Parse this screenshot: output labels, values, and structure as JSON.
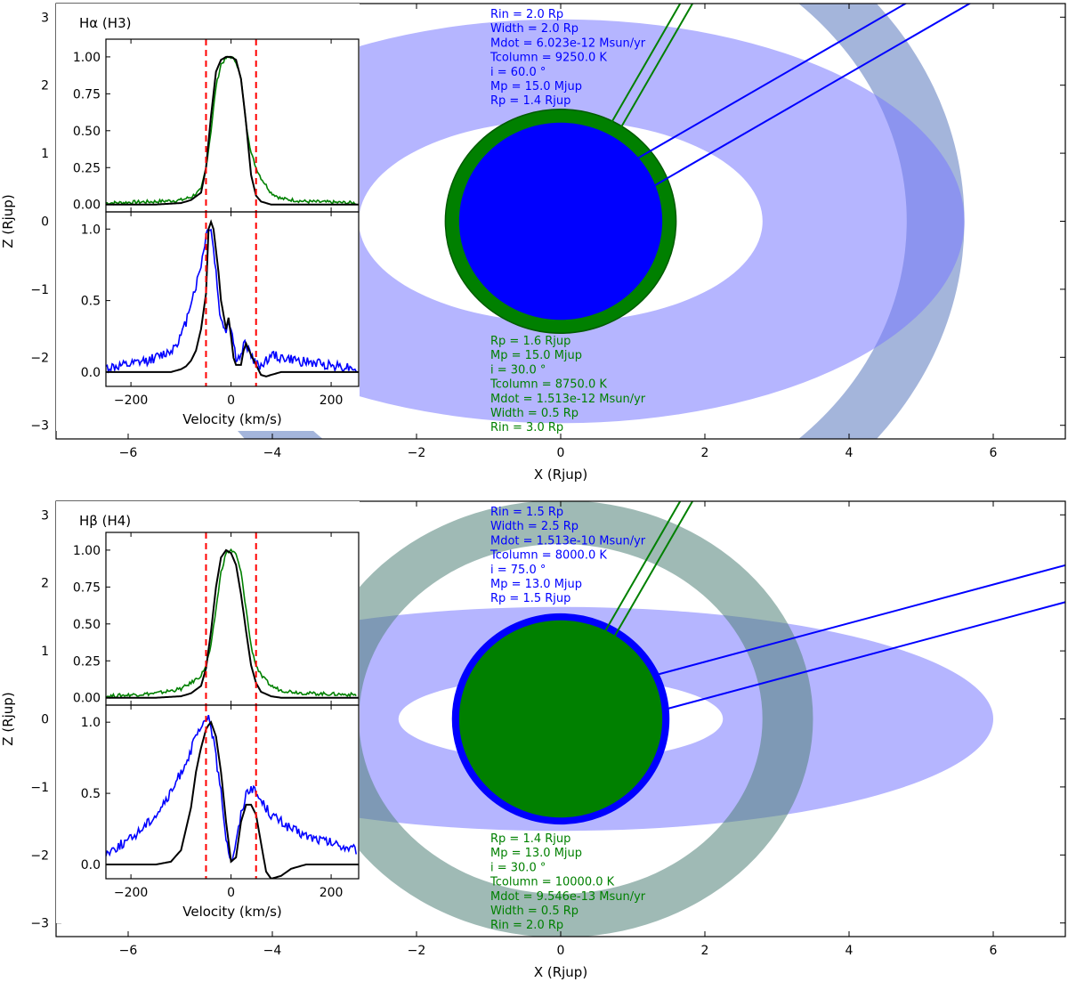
{
  "chart_data": [
    {
      "type": "scatter",
      "panel": "top",
      "line_label": "Hα (H3)",
      "xlabel": "X (Rjup)",
      "ylabel": "Z (Rjup)",
      "xlim": [
        -7,
        7
      ],
      "ylim": [
        -3.2,
        3.2
      ],
      "xticks": [
        -6,
        -4,
        -2,
        0,
        2,
        4,
        6
      ],
      "yticks": [
        -3,
        -2,
        -1,
        0,
        1,
        2,
        3
      ],
      "model_blue": {
        "color": "#0000ff",
        "Rp": 1.4,
        "Rin": 2.0,
        "Width": 2.0,
        "incl": 60.0,
        "params": [
          "Rin = 2.0 Rp",
          "Width = 2.0 Rp",
          "Mdot = 6.023e-12 Msun/yr",
          "Tcolumn = 9250.0 K",
          "i = 60.0 °",
          "Mp = 15.0 Mjup",
          "Rp = 1.4 Rjup"
        ]
      },
      "model_green": {
        "color": "#008000",
        "Rp": 1.6,
        "Rin": 3.0,
        "Width": 0.5,
        "incl": 30.0,
        "params": [
          "Rp = 1.6 Rjup",
          "Mp = 15.0 Mjup",
          "i = 30.0 °",
          "Tcolumn = 8750.0 K",
          "Mdot = 1.513e-12 Msun/yr",
          "Width = 0.5 Rp",
          "Rin = 3.0 Rp"
        ]
      },
      "inset": {
        "xlabel": "Velocity (km/s)",
        "xlim": [
          -250,
          255
        ],
        "xticks": [
          -200,
          0,
          200
        ],
        "vlines": [
          -50,
          50
        ],
        "upper": {
          "ylim": [
            -0.05,
            1.12
          ],
          "yticks": [
            0.0,
            0.25,
            0.5,
            0.75,
            1.0
          ],
          "yticklabels": [
            "0.00",
            "0.25",
            "0.50",
            "0.75",
            "1.00"
          ],
          "x": [
            -250,
            -150,
            -100,
            -80,
            -60,
            -50,
            -40,
            -30,
            -20,
            -10,
            0,
            10,
            20,
            30,
            40,
            50,
            60,
            80,
            100,
            150,
            250
          ],
          "observed": [
            0.01,
            0.02,
            0.03,
            0.05,
            0.1,
            0.25,
            0.5,
            0.8,
            0.95,
            0.99,
            1.0,
            0.97,
            0.85,
            0.55,
            0.35,
            0.25,
            0.18,
            0.08,
            0.04,
            0.02,
            0.01
          ],
          "model": [
            0.0,
            0.0,
            0.01,
            0.03,
            0.08,
            0.25,
            0.6,
            0.9,
            0.98,
            1.0,
            1.0,
            0.98,
            0.85,
            0.55,
            0.2,
            0.06,
            0.02,
            0.0,
            0.0,
            0.0,
            0.0
          ]
        },
        "lower": {
          "ylim": [
            -0.1,
            1.12
          ],
          "yticks": [
            0.0,
            0.5,
            1.0
          ],
          "yticklabels": [
            "0.0",
            "0.5",
            "1.0"
          ],
          "x": [
            -250,
            -200,
            -150,
            -120,
            -100,
            -90,
            -80,
            -70,
            -60,
            -50,
            -45,
            -40,
            -35,
            -30,
            -25,
            -20,
            -10,
            -5,
            0,
            5,
            10,
            20,
            25,
            30,
            40,
            50,
            60,
            70,
            80,
            100,
            150,
            200,
            250
          ],
          "observed": [
            0.03,
            0.05,
            0.1,
            0.15,
            0.25,
            0.35,
            0.5,
            0.6,
            0.75,
            0.95,
            1.02,
            1.0,
            0.85,
            0.7,
            0.5,
            0.35,
            0.3,
            0.35,
            0.32,
            0.2,
            0.1,
            0.1,
            0.18,
            0.2,
            0.12,
            0.05,
            0.05,
            0.08,
            0.12,
            0.1,
            0.07,
            0.05,
            0.03
          ],
          "model": [
            0.0,
            0.0,
            0.0,
            0.0,
            0.02,
            0.04,
            0.08,
            0.15,
            0.3,
            0.55,
            1.0,
            1.05,
            1.0,
            0.85,
            0.7,
            0.5,
            0.3,
            0.38,
            0.25,
            0.1,
            0.05,
            0.05,
            0.15,
            0.2,
            0.12,
            0.05,
            -0.02,
            -0.03,
            -0.02,
            0.0,
            0.0,
            0.0,
            0.0
          ]
        }
      }
    },
    {
      "type": "scatter",
      "panel": "bottom",
      "line_label": "Hβ (H4)",
      "xlabel": "X (Rjup)",
      "ylabel": "Z (Rjup)",
      "xlim": [
        -7,
        7
      ],
      "ylim": [
        -3.2,
        3.2
      ],
      "xticks": [
        -6,
        -4,
        -2,
        0,
        2,
        4,
        6
      ],
      "yticks": [
        -3,
        -2,
        -1,
        0,
        1,
        2,
        3
      ],
      "model_blue": {
        "color": "#0000ff",
        "Rp": 1.5,
        "Rin": 1.5,
        "Width": 2.5,
        "incl": 75.0,
        "params": [
          "Rin = 1.5 Rp",
          "Width = 2.5 Rp",
          "Mdot = 1.513e-10 Msun/yr",
          "Tcolumn = 8000.0 K",
          "i = 75.0 °",
          "Mp = 13.0 Mjup",
          "Rp = 1.5 Rjup"
        ]
      },
      "model_green": {
        "color": "#008000",
        "Rp": 1.4,
        "Rin": 2.0,
        "Width": 0.5,
        "incl": 30.0,
        "params": [
          "Rp = 1.4 Rjup",
          "Mp = 13.0 Mjup",
          "i = 30.0 °",
          "Tcolumn = 10000.0 K",
          "Mdot = 9.546e-13 Msun/yr",
          "Width = 0.5 Rp",
          "Rin = 2.0 Rp"
        ]
      },
      "inset": {
        "xlabel": "Velocity (km/s)",
        "xlim": [
          -250,
          255
        ],
        "xticks": [
          -200,
          0,
          200
        ],
        "vlines": [
          -50,
          50
        ],
        "upper": {
          "ylim": [
            -0.05,
            1.12
          ],
          "yticks": [
            0.0,
            0.25,
            0.5,
            0.75,
            1.0
          ],
          "yticklabels": [
            "0.00",
            "0.25",
            "0.50",
            "0.75",
            "1.00"
          ],
          "x": [
            -250,
            -150,
            -100,
            -80,
            -60,
            -50,
            -40,
            -30,
            -20,
            -10,
            0,
            10,
            20,
            30,
            40,
            50,
            60,
            80,
            100,
            150,
            250
          ],
          "observed": [
            0.01,
            0.03,
            0.06,
            0.1,
            0.15,
            0.22,
            0.35,
            0.6,
            0.85,
            0.98,
            1.0,
            0.97,
            0.85,
            0.6,
            0.35,
            0.22,
            0.15,
            0.08,
            0.05,
            0.03,
            0.02
          ],
          "model": [
            0.0,
            0.0,
            0.01,
            0.03,
            0.08,
            0.2,
            0.45,
            0.75,
            0.95,
            1.0,
            0.98,
            0.9,
            0.7,
            0.45,
            0.22,
            0.1,
            0.04,
            0.01,
            0.0,
            0.0,
            0.0
          ]
        },
        "lower": {
          "ylim": [
            -0.1,
            1.12
          ],
          "yticks": [
            0.0,
            0.5,
            1.0
          ],
          "yticklabels": [
            "0.0",
            "0.5",
            "1.0"
          ],
          "x": [
            -250,
            -200,
            -150,
            -120,
            -100,
            -80,
            -70,
            -60,
            -50,
            -45,
            -40,
            -30,
            -20,
            -10,
            0,
            10,
            20,
            30,
            40,
            50,
            60,
            70,
            80,
            100,
            120,
            150,
            200,
            250
          ],
          "observed": [
            0.08,
            0.18,
            0.35,
            0.5,
            0.65,
            0.8,
            0.9,
            0.95,
            1.0,
            1.05,
            0.98,
            0.75,
            0.5,
            0.2,
            0.02,
            0.15,
            0.35,
            0.5,
            0.55,
            0.5,
            0.45,
            0.4,
            0.35,
            0.3,
            0.25,
            0.2,
            0.15,
            0.1
          ],
          "model": [
            0.0,
            0.0,
            0.0,
            0.02,
            0.1,
            0.4,
            0.65,
            0.82,
            0.95,
            0.98,
            1.0,
            0.9,
            0.65,
            0.3,
            0.02,
            0.05,
            0.3,
            0.42,
            0.42,
            0.35,
            0.15,
            -0.05,
            -0.1,
            -0.08,
            -0.03,
            0.0,
            0.0,
            0.0
          ]
        }
      }
    }
  ]
}
